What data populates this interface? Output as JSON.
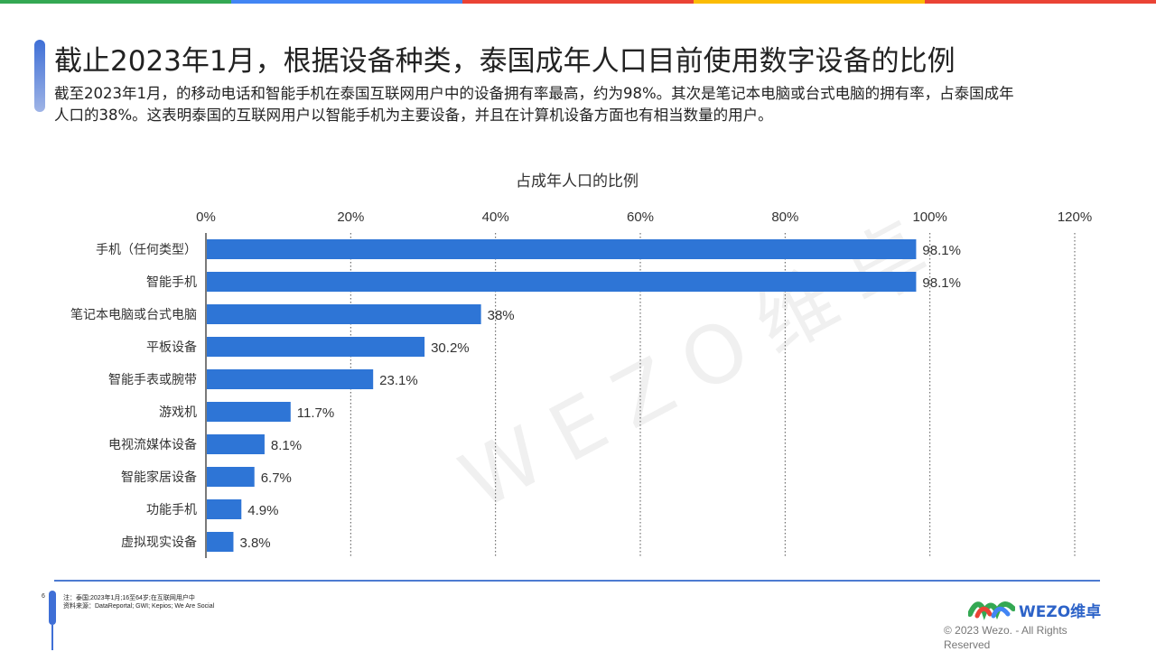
{
  "topbar_colors": [
    "#34a853",
    "#4285f4",
    "#ea4335",
    "#fbbc05",
    "#ea4335"
  ],
  "header": {
    "title": "截止2023年1月，根据设备种类，泰国成年人口目前使用数字设备的比例",
    "subtitle": "截至2023年1月，的移动电话和智能手机在泰国互联网用户中的设备拥有率最高，约为98%。其次是笔记本电脑或台式电脑的拥有率，占泰国成年人口的38%。这表明泰国的互联网用户以智能手机为主要设备，并且在计算机设备方面也有相当数量的用户。"
  },
  "chart_data": {
    "type": "bar",
    "orientation": "horizontal",
    "title": "占成年人口的比例",
    "categories": [
      "手机（任何类型）",
      "智能手机",
      "笔记本电脑或台式电脑",
      "平板设备",
      "智能手表或腕带",
      "游戏机",
      "电视流媒体设备",
      "智能家居设备",
      "功能手机",
      "虚拟现实设备"
    ],
    "values": [
      98.1,
      98.1,
      38,
      30.2,
      23.1,
      11.7,
      8.1,
      6.7,
      4.9,
      3.8
    ],
    "value_labels": [
      "98.1%",
      "98.1%",
      "38%",
      "30.2%",
      "23.1%",
      "11.7%",
      "8.1%",
      "6.7%",
      "4.9%",
      "3.8%"
    ],
    "xlim": [
      0,
      120
    ],
    "xticks": [
      0,
      20,
      40,
      60,
      80,
      100,
      120
    ],
    "xtick_labels": [
      "0%",
      "20%",
      "40%",
      "60%",
      "80%",
      "100%",
      "120%"
    ],
    "axis_position": "top",
    "grid": "vertical dotted",
    "bar_color": "#2e75d6"
  },
  "watermark": "WEZO维卓",
  "footer": {
    "page_number": "6",
    "note": "注：泰国;2023年1月;16至64岁;在互联网用户中",
    "source": "资料来源：DataReportal; GWI; Kepios; We Are Social",
    "logo_text": "WEZO维卓",
    "copyright": "© 2023 Wezo. - All Rights Reserved"
  }
}
